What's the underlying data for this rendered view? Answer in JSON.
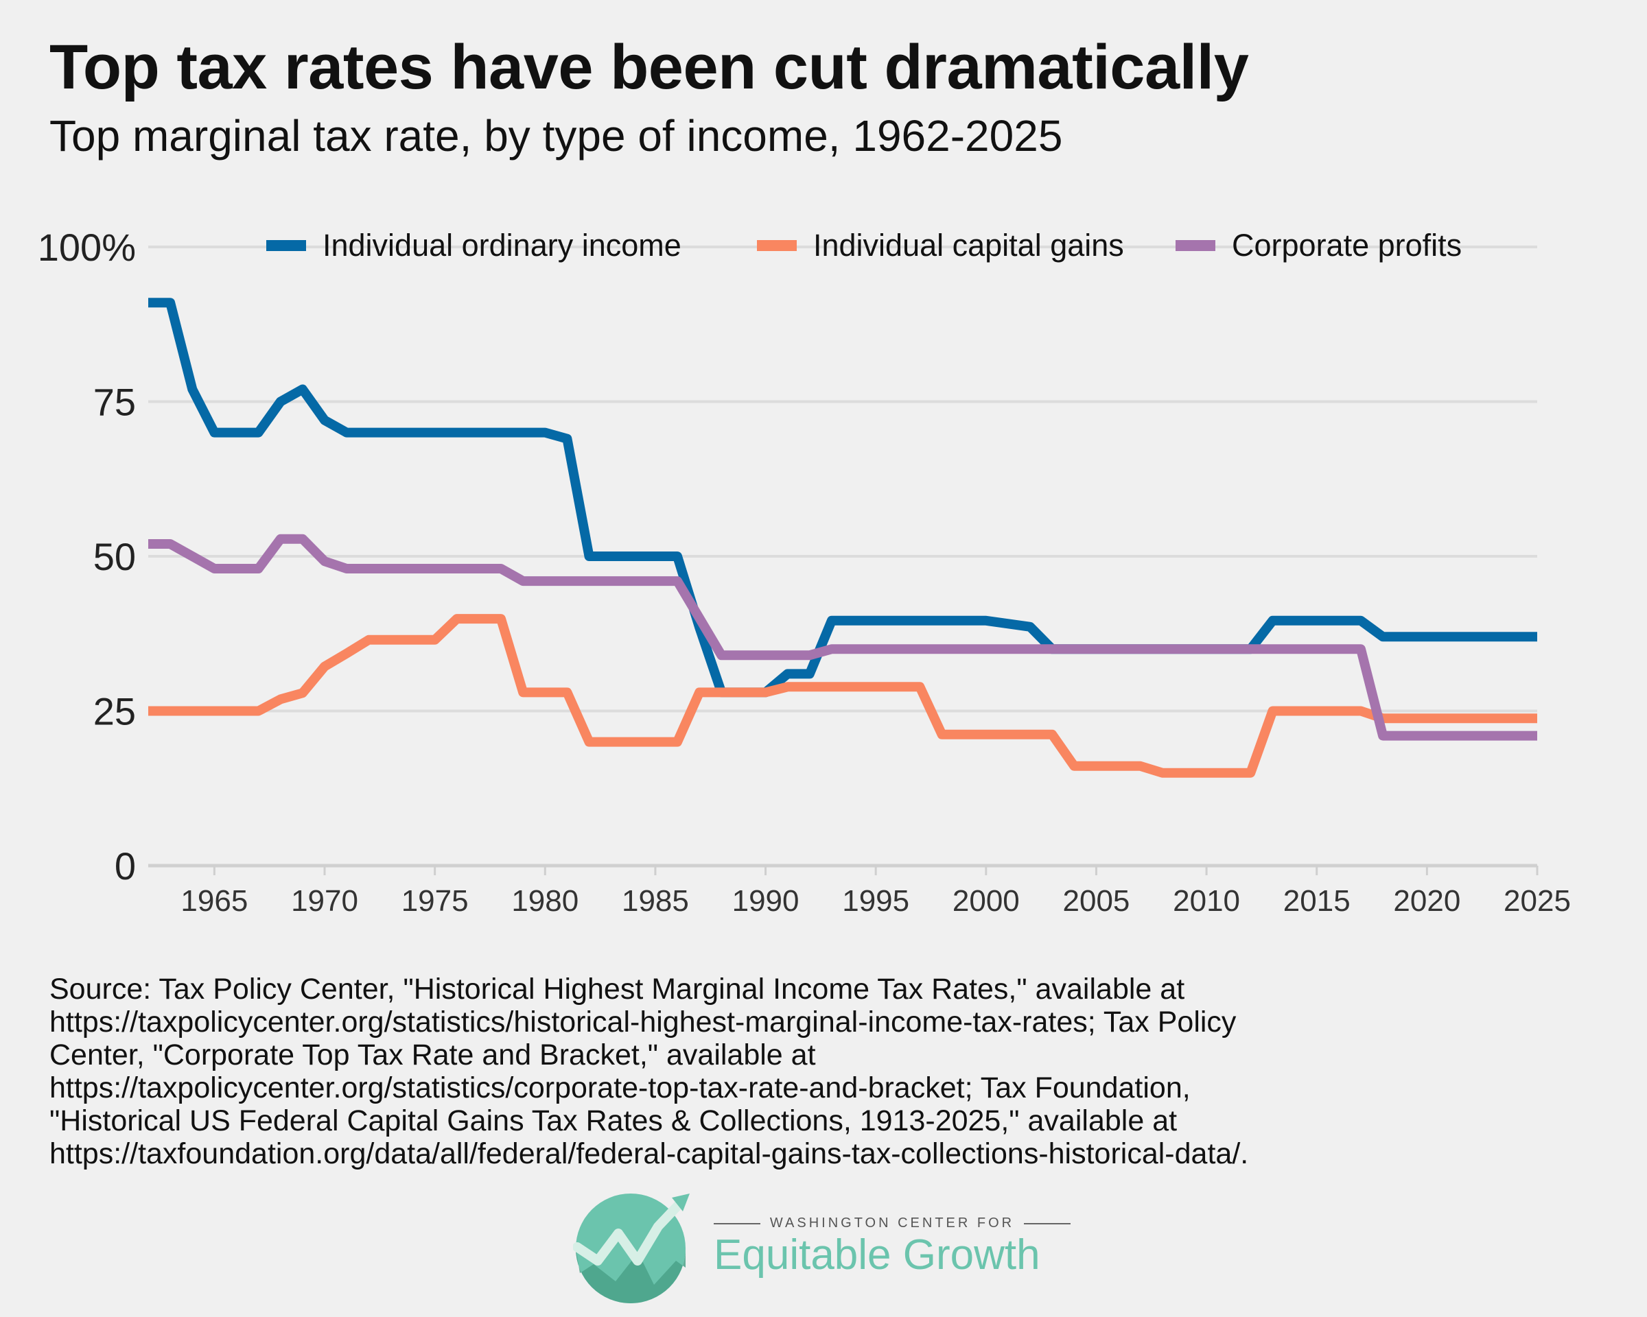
{
  "header": {
    "title": "Top tax rates have been cut dramatically",
    "subtitle": "Top marginal tax rate, by type of income, 1962-2025"
  },
  "source_lines": [
    "Source: Tax Policy Center, \"Historical Highest Marginal Income Tax Rates,\" available at",
    "https://taxpolicycenter.org/statistics/historical-highest-marginal-income-tax-rates; Tax Policy",
    "Center, \"Corporate Top Tax Rate and Bracket,\" available at",
    "https://taxpolicycenter.org/statistics/corporate-top-tax-rate-and-bracket; Tax Foundation,",
    "\"Historical US Federal Capital Gains Tax Rates & Collections, 1913-2025,\" available at",
    "https://taxfoundation.org/data/all/federal/federal-capital-gains-tax-collections-historical-data/."
  ],
  "logo": {
    "small_text": "WASHINGTON CENTER FOR",
    "big_text": "Equitable Growth",
    "color": "#6bc4ad"
  },
  "chart_data": {
    "type": "line",
    "x_start": 1962,
    "x_end": 2025,
    "xlim": [
      1962,
      2025
    ],
    "ylim": [
      0,
      100
    ],
    "y_ticks": [
      0,
      25,
      50,
      75,
      100
    ],
    "y_tick_labels": [
      "0",
      "25",
      "50",
      "75",
      "100%"
    ],
    "x_ticks": [
      1965,
      1970,
      1975,
      1980,
      1985,
      1990,
      1995,
      2000,
      2005,
      2010,
      2015,
      2020,
      2025
    ],
    "grid": true,
    "legend_position": "top",
    "series": [
      {
        "name": "Individual ordinary income",
        "color": "#0569a6",
        "values": [
          91,
          91,
          77,
          70,
          70,
          70,
          75,
          77,
          72,
          70,
          70,
          70,
          70,
          70,
          70,
          70,
          70,
          70,
          70,
          69,
          50,
          50,
          50,
          50,
          50,
          38.5,
          28,
          28,
          28,
          31,
          31,
          39.6,
          39.6,
          39.6,
          39.6,
          39.6,
          39.6,
          39.6,
          39.6,
          39.1,
          38.6,
          35,
          35,
          35,
          35,
          35,
          35,
          35,
          35,
          35,
          35,
          39.6,
          39.6,
          39.6,
          39.6,
          39.6,
          37,
          37,
          37,
          37,
          37,
          37,
          37,
          37
        ]
      },
      {
        "name": "Individual capital gains",
        "color": "#f98660",
        "values": [
          25,
          25,
          25,
          25,
          25,
          25,
          26.9,
          27.9,
          32.2,
          34.3,
          36.5,
          36.5,
          36.5,
          36.5,
          39.9,
          39.9,
          39.9,
          28,
          28,
          28,
          20,
          20,
          20,
          20,
          20,
          28,
          28,
          28,
          28,
          28.9,
          28.9,
          28.9,
          28.9,
          28.9,
          28.9,
          28.9,
          21.2,
          21.2,
          21.2,
          21.2,
          21.2,
          21.2,
          16.1,
          16.1,
          16.1,
          16.1,
          15,
          15,
          15,
          15,
          15,
          25,
          25,
          25,
          25,
          25,
          23.8,
          23.8,
          23.8,
          23.8,
          23.8,
          23.8,
          23.8,
          23.8
        ]
      },
      {
        "name": "Corporate profits",
        "color": "#a574ad",
        "values": [
          52,
          52,
          50,
          48,
          48,
          48,
          52.8,
          52.8,
          49.2,
          48,
          48,
          48,
          48,
          48,
          48,
          48,
          48,
          46,
          46,
          46,
          46,
          46,
          46,
          46,
          46,
          40,
          34,
          34,
          34,
          34,
          34,
          35,
          35,
          35,
          35,
          35,
          35,
          35,
          35,
          35,
          35,
          35,
          35,
          35,
          35,
          35,
          35,
          35,
          35,
          35,
          35,
          35,
          35,
          35,
          35,
          35,
          21,
          21,
          21,
          21,
          21,
          21,
          21,
          21
        ]
      }
    ]
  }
}
